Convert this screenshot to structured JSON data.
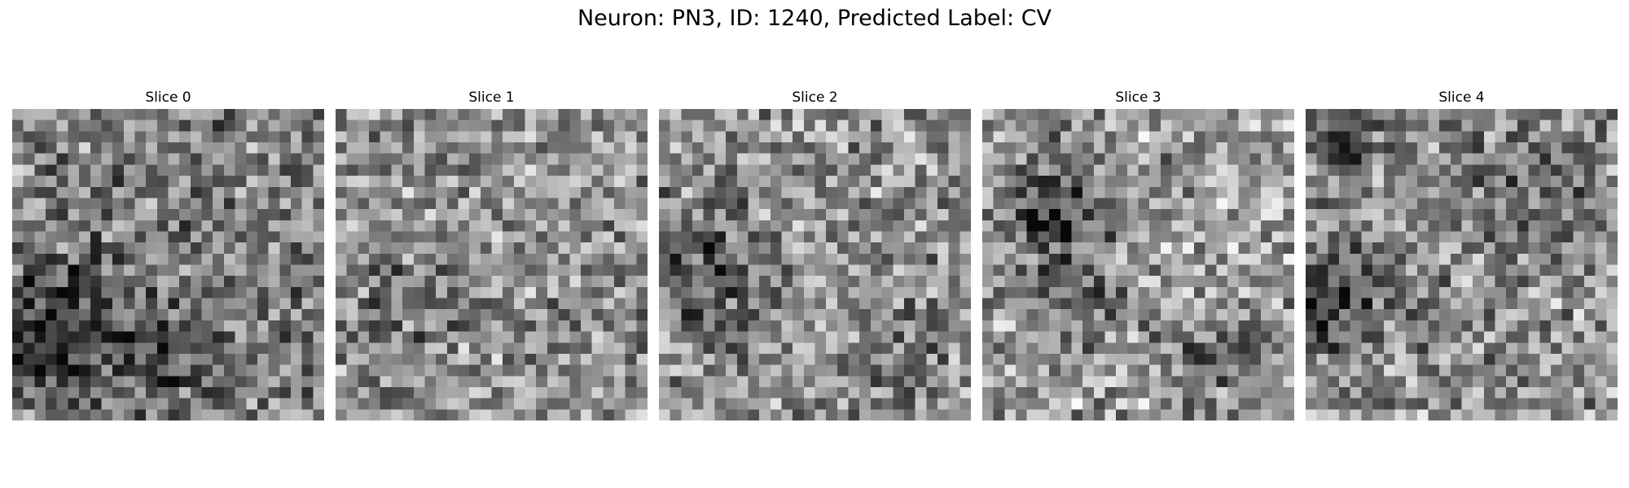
{
  "figure": {
    "title": "Neuron: PN3, ID: 1240, Predicted Label: CV",
    "colormap": "grayscale"
  },
  "slices": [
    {
      "title": "Slice 0"
    },
    {
      "title": "Slice 1"
    },
    {
      "title": "Slice 2"
    },
    {
      "title": "Slice 3"
    },
    {
      "title": "Slice 4"
    }
  ]
}
